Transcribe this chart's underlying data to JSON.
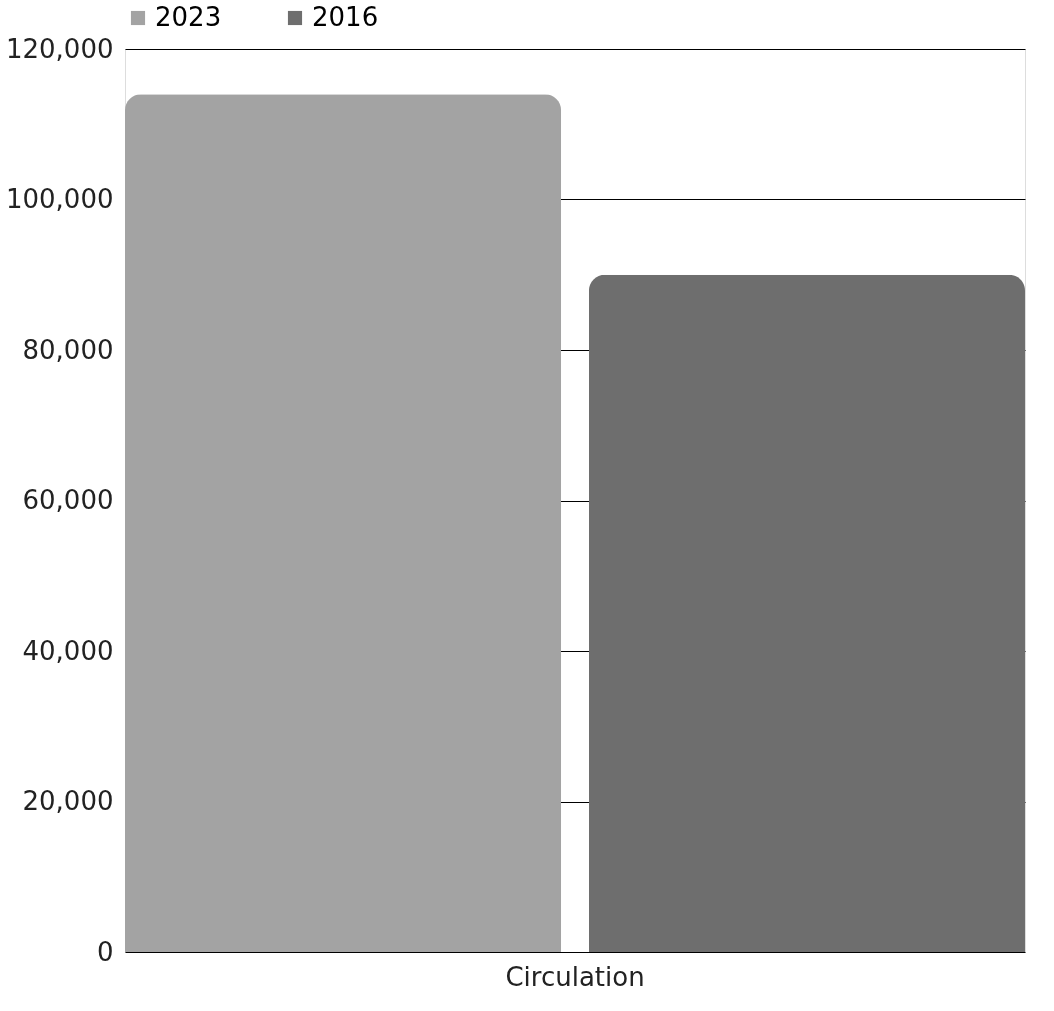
{
  "chart_data": {
    "type": "bar",
    "categories": [
      "Circulation"
    ],
    "series": [
      {
        "name": "2023",
        "color": "#a3a3a3",
        "values": [
          114000
        ]
      },
      {
        "name": "2016",
        "color": "#6e6e6e",
        "values": [
          90000
        ]
      }
    ],
    "ylim": [
      0,
      120000
    ],
    "yticks": [
      0,
      {
        "value": 20000,
        "label": "20,000"
      },
      {
        "value": 40000,
        "label": "40,000"
      },
      {
        "value": 60000,
        "label": "60,000"
      },
      {
        "value": 80000,
        "label": "80,000"
      },
      {
        "value": 100000,
        "label": "100,000"
      },
      {
        "value": 120000,
        "label": "120,000"
      }
    ],
    "grid": "y",
    "legend": "top"
  }
}
